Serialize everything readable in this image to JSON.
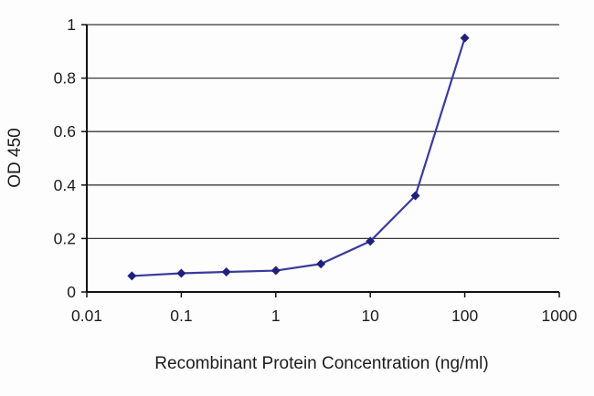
{
  "chart_data": {
    "type": "line",
    "title": "",
    "xlabel": "Recombinant Protein Concentration (ng/ml)",
    "ylabel": "OD 450",
    "x_scale": "log",
    "y_scale": "linear",
    "xlim": [
      0.01,
      1000
    ],
    "ylim": [
      0,
      1
    ],
    "x_tick_values": [
      0.01,
      0.1,
      1,
      10,
      100,
      1000
    ],
    "x_tick_labels": [
      "0.01",
      "0.1",
      "1",
      "10",
      "100",
      "1000"
    ],
    "y_tick_values": [
      0,
      0.2,
      0.4,
      0.6,
      0.8,
      1
    ],
    "y_tick_labels": [
      "0",
      "0.2",
      "0.4",
      "0.6",
      "0.8",
      "1"
    ],
    "grid": "horizontal",
    "legend": "none",
    "x": [
      0.03,
      0.1,
      0.3,
      1,
      3,
      10,
      30,
      100
    ],
    "series": [
      {
        "name": "OD 450",
        "values": [
          0.06,
          0.07,
          0.075,
          0.08,
          0.105,
          0.19,
          0.36,
          0.95
        ],
        "line_color": "#3a3a9e",
        "marker": "diamond",
        "marker_color": "#20207c"
      }
    ],
    "axis_color": "#111111",
    "grid_color": "#3a3a3a"
  }
}
